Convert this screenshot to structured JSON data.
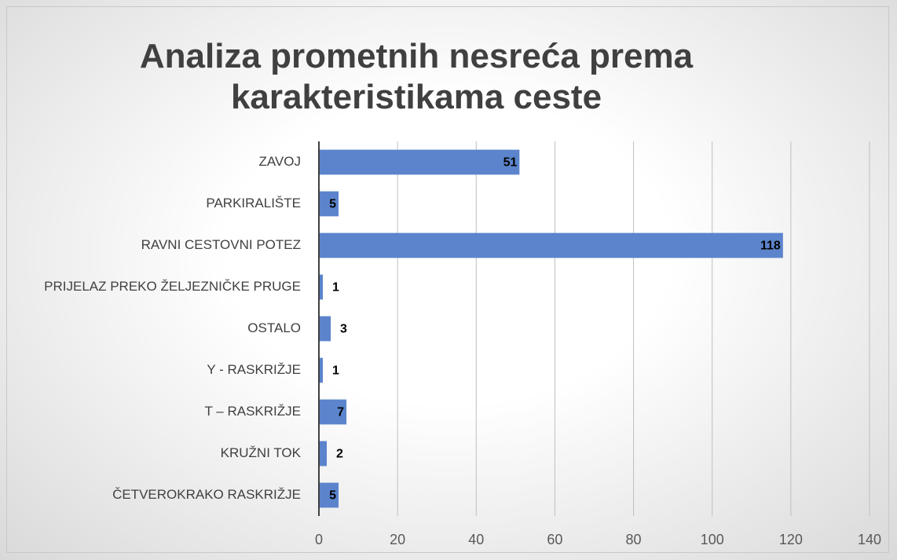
{
  "chart_data": {
    "type": "bar",
    "orientation": "horizontal",
    "title": "Analiza prometnih nesreća prema karakteristikama ceste",
    "categories": [
      "ZAVOJ",
      "PARKIRALIŠTE",
      "RAVNI CESTOVNI POTEZ",
      "PRIJELAZ PREKO ŽELJEZNIČKE PRUGE",
      "OSTALO",
      "Y - RASKRIŽJE",
      "T – RASKRIŽJE",
      "KRUŽNI TOK",
      "ČETVEROKRAKO RASKRIŽJE"
    ],
    "values": [
      51,
      5,
      118,
      1,
      3,
      1,
      7,
      2,
      5
    ],
    "color": "#5b84cc",
    "xlim": [
      0,
      140
    ],
    "xticks": [
      0,
      20,
      40,
      60,
      80,
      100,
      120,
      140
    ],
    "grid": true
  }
}
